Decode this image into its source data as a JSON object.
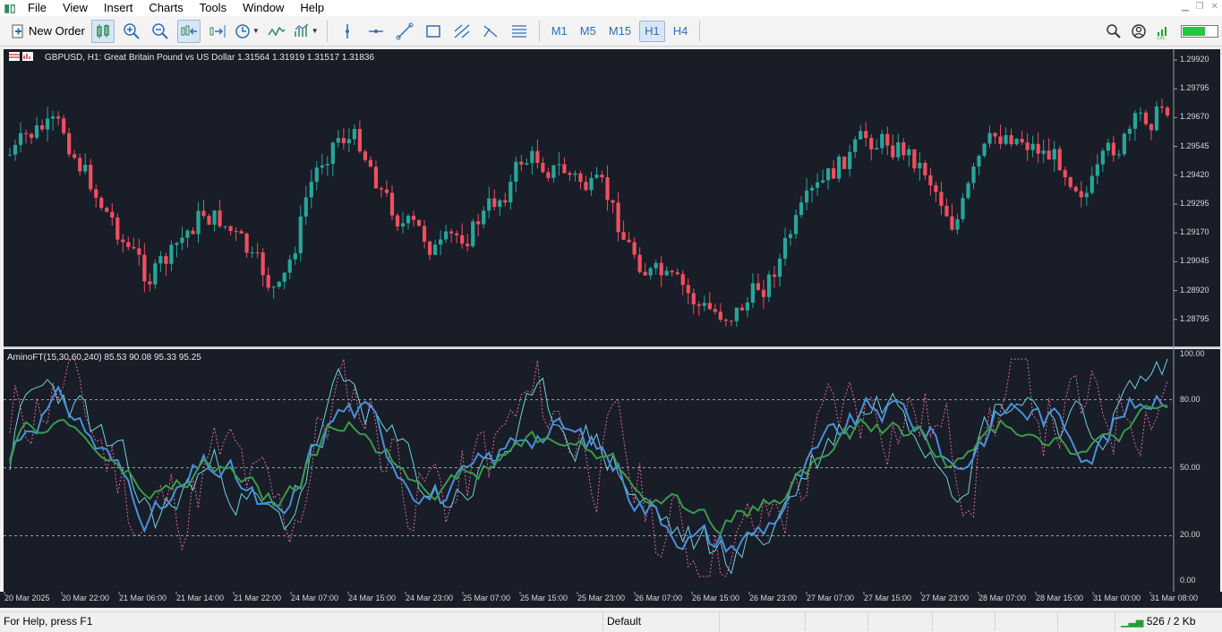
{
  "menu": [
    "File",
    "View",
    "Insert",
    "Charts",
    "Tools",
    "Window",
    "Help"
  ],
  "toolbar": {
    "new_order_label": "New Order",
    "timeframes": [
      "M1",
      "M5",
      "M15",
      "H1",
      "H4"
    ],
    "active_timeframe": "H1"
  },
  "chart": {
    "title": "GBPUSD, H1:  Great Britain Pound vs US Dollar  1.31564 1.31919 1.31517 1.31836",
    "price_axis": [
      "1.29920",
      "1.29795",
      "1.29670",
      "1.29545",
      "1.29420",
      "1.29295",
      "1.29170",
      "1.29045",
      "1.28920",
      "1.28795"
    ],
    "indicator_title": "AminoFT(15,30,60,240) 85.53 90.08 95.33 95.25",
    "indicator_axis": [
      "100.00",
      "80.00",
      "50.00",
      "20.00",
      "0.00"
    ],
    "time_axis": [
      "20 Mar 2025",
      "20 Mar 22:00",
      "21 Mar 06:00",
      "21 Mar 14:00",
      "21 Mar 22:00",
      "24 Mar 07:00",
      "24 Mar 15:00",
      "24 Mar 23:00",
      "25 Mar 07:00",
      "25 Mar 15:00",
      "25 Mar 23:00",
      "26 Mar 07:00",
      "26 Mar 15:00",
      "26 Mar 23:00",
      "27 Mar 07:00",
      "27 Mar 15:00",
      "27 Mar 23:00",
      "28 Mar 07:00",
      "28 Mar 15:00",
      "31 Mar 00:00",
      "31 Mar 08:00"
    ],
    "colors": {
      "background": "#181d27",
      "bull": "#26a69a",
      "bear": "#ef4f5f",
      "line_pink": "#e0689a",
      "line_cyan": "#6fd0e0",
      "line_blue": "#4a90d9",
      "line_green": "#3a9a4a"
    }
  },
  "status": {
    "help": "For Help, press F1",
    "profile": "Default",
    "traffic": "526 / 2 Kb"
  }
}
